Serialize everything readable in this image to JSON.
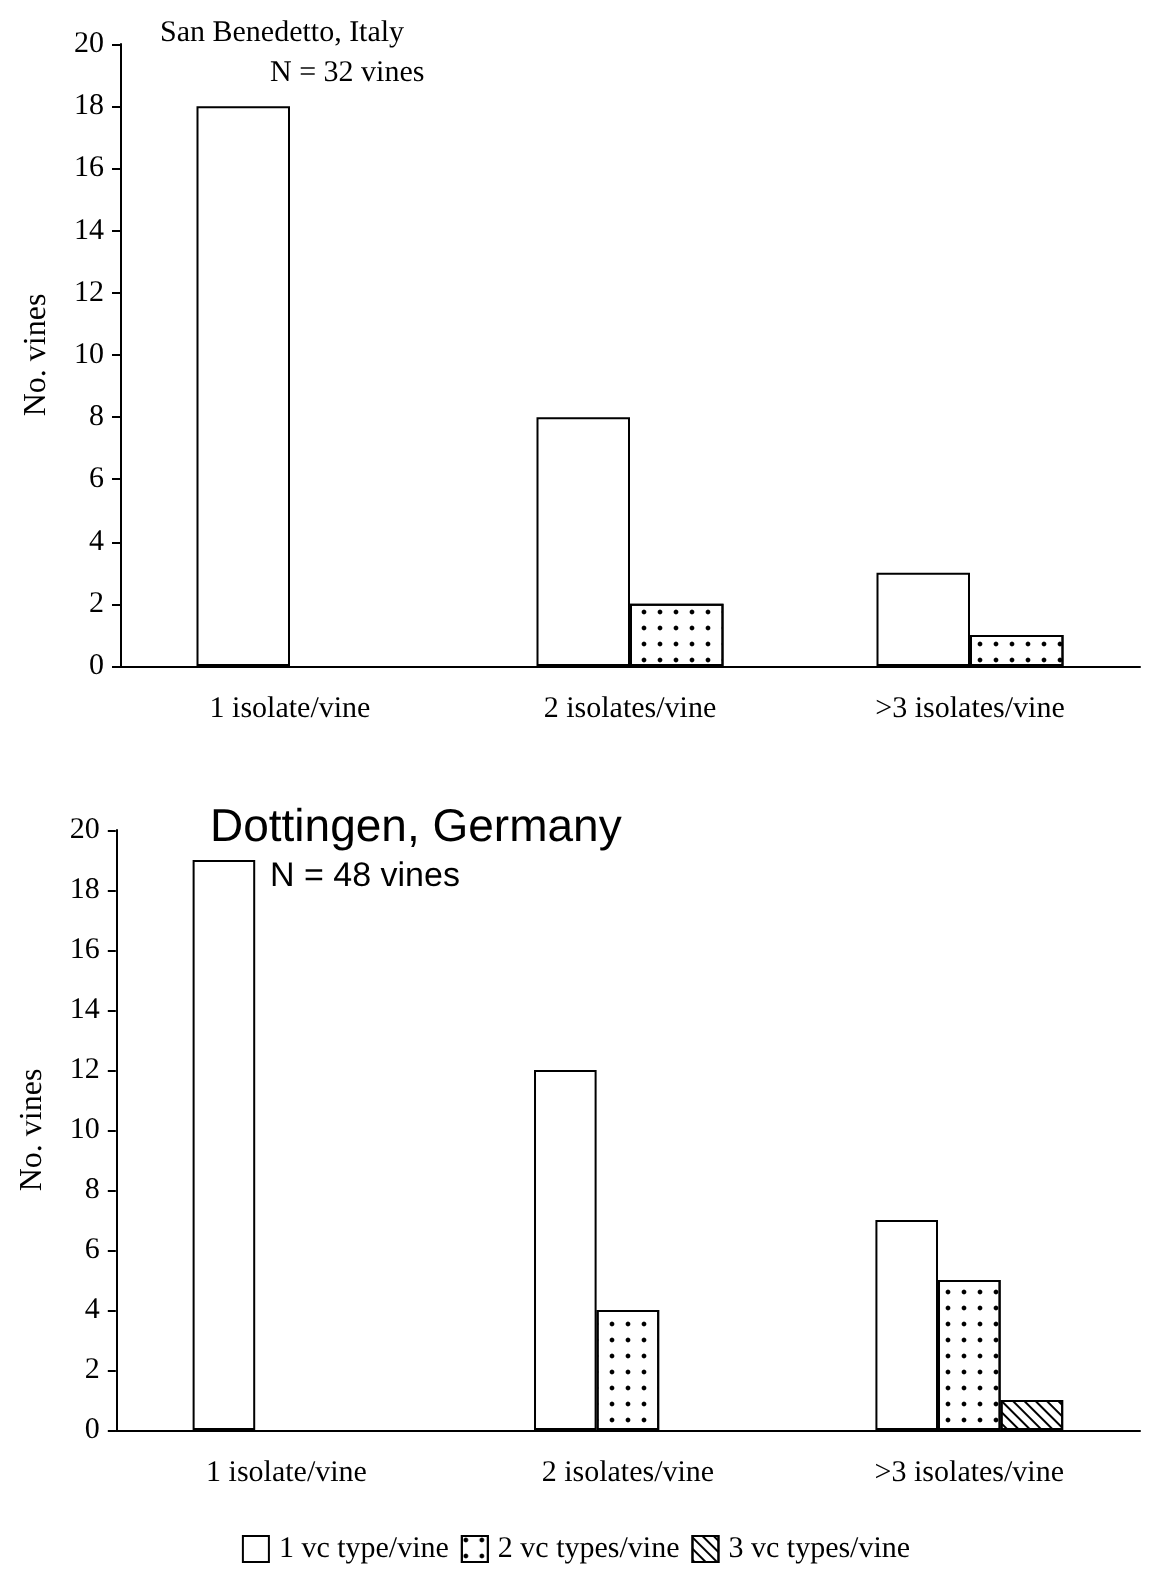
{
  "chart_data": [
    {
      "type": "bar",
      "title": "San Benedetto, Italy",
      "subtitle": "N = 32 vines",
      "ylabel": "No. vines",
      "categories": [
        "1 isolate/vine",
        "2 isolates/vine",
        ">3 isolates/vine"
      ],
      "series": [
        {
          "color": "#ffffff",
          "values": [
            18,
            8,
            3
          ]
        },
        {
          "color": "#ffffff",
          "values": [
            null,
            2,
            1
          ]
        }
      ],
      "ylim": [
        0,
        20
      ],
      "yticks": [
        0,
        2,
        4,
        6,
        8,
        10,
        12,
        14,
        16,
        18,
        20
      ],
      "legend": false
    },
    {
      "type": "bar",
      "title": "Dottingen, Germany",
      "subtitle": "N = 48 vines",
      "ylabel": "No. vines",
      "categories": [
        "1 isolate/vine",
        "2 isolates/vine",
        ">3 isolates/vine"
      ],
      "series": [
        {
          "name": "1 vc type/vine",
          "color": "#ffffff",
          "values": [
            19,
            12,
            7
          ]
        },
        {
          "name": "2 vc types/vine",
          "color": "#ffffff",
          "values": [
            null,
            4,
            5
          ]
        },
        {
          "name": "3 vc types/vine",
          "color": "#ffffff",
          "values": [
            null,
            null,
            1
          ]
        }
      ],
      "ylim": [
        0,
        20
      ],
      "yticks": [
        0,
        2,
        4,
        6,
        8,
        10,
        12,
        14,
        16,
        18,
        20
      ],
      "legend": "bottom"
    }
  ]
}
